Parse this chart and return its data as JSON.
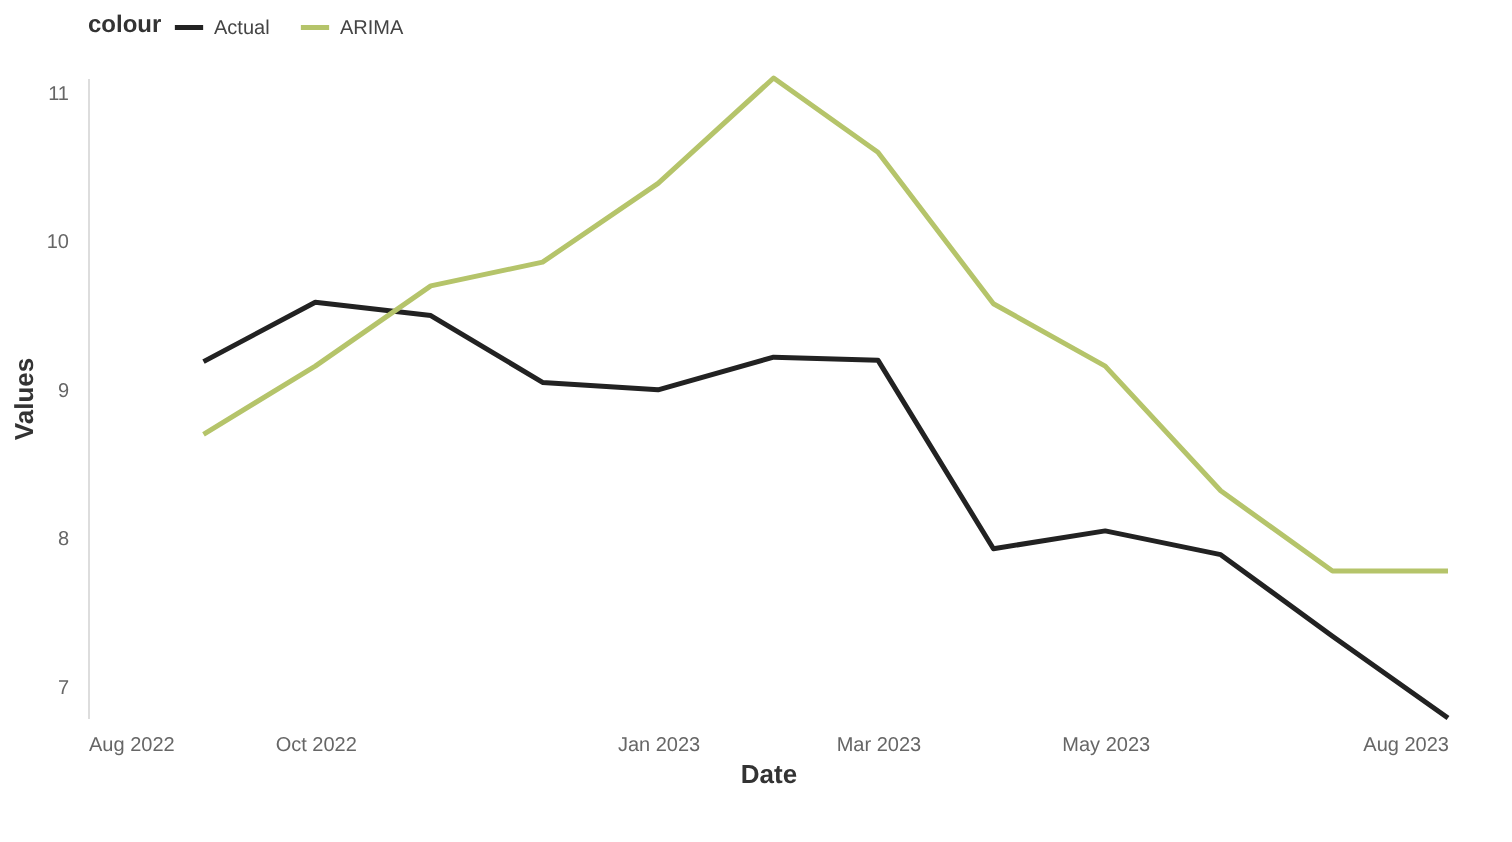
{
  "chart_data": {
    "type": "line",
    "xlabel": "Date",
    "ylabel": "Values",
    "legend_title": "colour",
    "x": [
      "2022-09-01",
      "2022-10-01",
      "2022-11-01",
      "2022-12-01",
      "2023-01-01",
      "2023-02-01",
      "2023-03-01",
      "2023-04-01",
      "2023-05-01",
      "2023-06-01",
      "2023-07-01",
      "2023-08-01"
    ],
    "series": [
      {
        "name": "Actual",
        "color": "#222222",
        "values": [
          9.19,
          9.59,
          9.5,
          9.05,
          9.0,
          9.22,
          9.2,
          7.93,
          8.05,
          7.89,
          7.34,
          6.79
        ]
      },
      {
        "name": "ARIMA",
        "color": "#b5c46a",
        "values": [
          8.7,
          9.16,
          9.7,
          9.86,
          10.39,
          11.1,
          10.6,
          9.58,
          9.16,
          8.32,
          7.78,
          7.78
        ]
      }
    ],
    "xlim": [
      "2022-08-01",
      "2023-08-01"
    ],
    "xticks": [
      {
        "value": "2022-08-01",
        "label": "Aug 2022"
      },
      {
        "value": "2022-10-01",
        "label": "Oct 2022"
      },
      {
        "value": "2023-01-01",
        "label": "Jan 2023"
      },
      {
        "value": "2023-03-01",
        "label": "Mar 2023"
      },
      {
        "value": "2023-05-01",
        "label": "May 2023"
      },
      {
        "value": "2023-08-01",
        "label": "Aug 2023"
      }
    ],
    "ylim": [
      6.79,
      11.1
    ],
    "yticks": [
      7,
      8,
      9,
      10,
      11
    ],
    "grid": false,
    "legend": "top",
    "marker": "none",
    "line_style": "solid"
  }
}
